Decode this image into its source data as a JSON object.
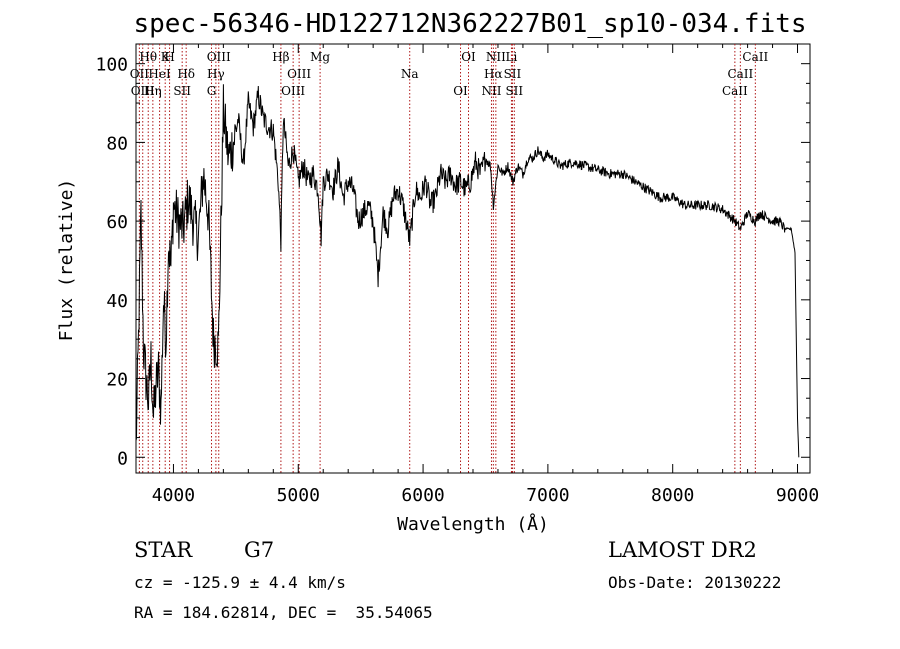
{
  "chart_data": {
    "type": "line",
    "title": "spec-56346-HD122712N362227B01_sp10-034.fits",
    "xlabel": "Wavelength (Å)",
    "ylabel": "Flux (relative)",
    "xlim": [
      3700,
      9100
    ],
    "ylim": [
      -4,
      105
    ],
    "xticks": [
      4000,
      5000,
      6000,
      7000,
      8000,
      9000
    ],
    "yticks": [
      0,
      20,
      40,
      60,
      80,
      100
    ],
    "grid": false,
    "series": [
      {
        "x": [
          3700,
          3720,
          3740,
          3760,
          3780,
          3800,
          3820,
          3840,
          3860,
          3880,
          3900,
          3920,
          3940,
          3960,
          3980,
          4000,
          4040,
          4080,
          4120,
          4160,
          4200,
          4240,
          4280,
          4320,
          4360,
          4400,
          4440,
          4480,
          4520,
          4560,
          4600,
          4640,
          4680,
          4720,
          4760,
          4800,
          4840,
          4861,
          4880,
          4920,
          4960,
          5000,
          5040,
          5080,
          5120,
          5160,
          5183,
          5200,
          5240,
          5280,
          5320,
          5360,
          5400,
          5440,
          5480,
          5520,
          5560,
          5600,
          5640,
          5680,
          5720,
          5760,
          5800,
          5840,
          5893,
          5940,
          5980,
          6020,
          6060,
          6100,
          6140,
          6180,
          6220,
          6260,
          6300,
          6340,
          6380,
          6420,
          6460,
          6500,
          6540,
          6563,
          6600,
          6640,
          6680,
          6720,
          6760,
          6800,
          6840,
          6880,
          6920,
          6960,
          7000,
          7100,
          7200,
          7300,
          7400,
          7500,
          7600,
          7700,
          7800,
          7900,
          8000,
          8100,
          8200,
          8300,
          8400,
          8500,
          8542,
          8600,
          8662,
          8700,
          8750,
          8800,
          8850,
          8900,
          8950,
          8980,
          9000,
          9010
        ],
        "y": [
          2,
          30,
          62,
          28,
          20,
          14,
          25,
          10,
          18,
          22,
          12,
          40,
          30,
          55,
          48,
          64,
          60,
          58,
          66,
          60,
          56,
          72,
          62,
          30,
          28,
          88,
          76,
          80,
          86,
          74,
          90,
          84,
          92,
          86,
          84,
          83,
          70,
          55,
          86,
          74,
          78,
          70,
          74,
          70,
          72,
          68,
          56,
          70,
          72,
          68,
          74,
          66,
          70,
          68,
          60,
          62,
          64,
          60,
          46,
          62,
          58,
          66,
          68,
          64,
          55,
          68,
          66,
          70,
          64,
          66,
          72,
          70,
          72,
          69,
          70,
          68,
          70,
          75,
          72,
          76,
          74,
          64,
          74,
          72,
          74,
          70,
          74,
          72,
          76,
          76,
          78,
          76,
          77,
          74,
          75,
          74,
          73,
          72,
          72,
          70,
          68,
          66,
          66,
          64,
          64,
          64,
          63,
          60,
          58,
          62,
          60,
          62,
          61,
          60,
          60,
          58,
          58,
          52,
          10,
          0
        ]
      }
    ],
    "lines": [
      {
        "name": "Hθ",
        "x": 3798
      },
      {
        "name": "OII",
        "x": 3727
      },
      {
        "name": "OIII",
        "x": 3754
      },
      {
        "name": "K",
        "x": 3934
      },
      {
        "name": "HeI",
        "x": 3889
      },
      {
        "name": "Hη",
        "x": 3835
      },
      {
        "name": "H",
        "x": 3969
      },
      {
        "name": "Hδ",
        "x": 4102
      },
      {
        "name": "SII",
        "x": 4070
      },
      {
        "name": "OIII",
        "x": 4363
      },
      {
        "name": "Hγ",
        "x": 4340
      },
      {
        "name": "G",
        "x": 4305
      },
      {
        "name": "Hβ",
        "x": 4861
      },
      {
        "name": "OIII",
        "x": 5007
      },
      {
        "name": "OIII",
        "x": 4959
      },
      {
        "name": "Mg",
        "x": 5175
      },
      {
        "name": "Na",
        "x": 5893
      },
      {
        "name": "OI",
        "x": 6300
      },
      {
        "name": "OI",
        "x": 6364
      },
      {
        "name": "Hα",
        "x": 6563
      },
      {
        "name": "NII",
        "x": 6548
      },
      {
        "name": "NII",
        "x": 6583
      },
      {
        "name": "SII",
        "x": 6716
      },
      {
        "name": "SII",
        "x": 6731
      },
      {
        "name": "Li",
        "x": 6708
      },
      {
        "name": "CaII",
        "x": 8542
      },
      {
        "name": "CaII",
        "x": 8498
      },
      {
        "name": "CaII",
        "x": 8662
      }
    ]
  },
  "footer": {
    "object_type": "STAR",
    "subclass": "G7",
    "survey": "LAMOST DR2",
    "velocity": "cz = -125.9 ± 4.4 km/s",
    "obs_date": "Obs-Date: 20130222",
    "coords": "RA = 184.62814, DEC =  35.54065"
  }
}
